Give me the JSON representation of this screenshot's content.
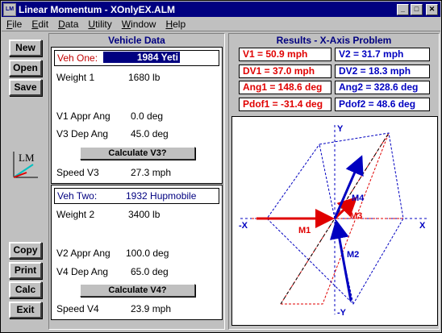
{
  "window": {
    "title": "Linear Momentum - XOnlyEX.ALM",
    "icon_label": "LM",
    "controls": {
      "minimize": "_",
      "maximize": "□",
      "close": "✕"
    }
  },
  "menu": [
    {
      "u": "F",
      "rest": "ile"
    },
    {
      "u": "E",
      "rest": "dit"
    },
    {
      "u": "D",
      "rest": "ata"
    },
    {
      "u": "U",
      "rest": "tility"
    },
    {
      "u": "W",
      "rest": "indow"
    },
    {
      "u": "H",
      "rest": "elp"
    }
  ],
  "toolbar": {
    "new": "New",
    "open": "Open",
    "save": "Save",
    "logo": "LM",
    "copy": "Copy",
    "print": "Print",
    "calc": "Calc",
    "exit": "Exit"
  },
  "vehicle_panel": {
    "title": "Vehicle Data",
    "veh1": {
      "label": "Veh One:",
      "name": "1984 Yeti",
      "weight_label": "Weight 1",
      "weight": "1680 lb",
      "appr_label": "V1 Appr Ang",
      "appr": "0.0 deg",
      "dep_label": "V3 Dep Ang",
      "dep": "45.0 deg",
      "calc_button": "Calculate V3?",
      "speed_label": "Speed V3",
      "speed": "27.3 mph"
    },
    "veh2": {
      "label": "Veh Two:",
      "name": "1932 Hupmobile",
      "weight_label": "Weight 2",
      "weight": "3400 lb",
      "appr_label": "V2 Appr Ang",
      "appr": "100.0 deg",
      "dep_label": "V4 Dep Ang",
      "dep": "65.0 deg",
      "calc_button": "Calculate V4?",
      "speed_label": "Speed V4",
      "speed": "23.9 mph"
    }
  },
  "results_panel": {
    "title": "Results - X-Axis Problem",
    "v1": "V1 = 50.9 mph",
    "v2": "V2 = 31.7 mph",
    "dv1": "DV1 = 37.0 mph",
    "dv2": "DV2 = 18.3 mph",
    "ang1": "Ang1 = 148.6 deg",
    "ang2": "Ang2 = 328.6 deg",
    "pdof1": "Pdof1 = -31.4 deg",
    "pdof2": "Pdof2 = 48.6 deg"
  },
  "diagram": {
    "axis_y_top": "Y",
    "axis_y_bottom": "-Y",
    "axis_x_left": "-X",
    "axis_x_right": "X",
    "m1": "M1",
    "m2": "M2",
    "m3": "M3",
    "m4": "M4",
    "colors": {
      "veh1": "#e00000",
      "veh2": "#0000c0",
      "axis": "#0000c0"
    }
  }
}
